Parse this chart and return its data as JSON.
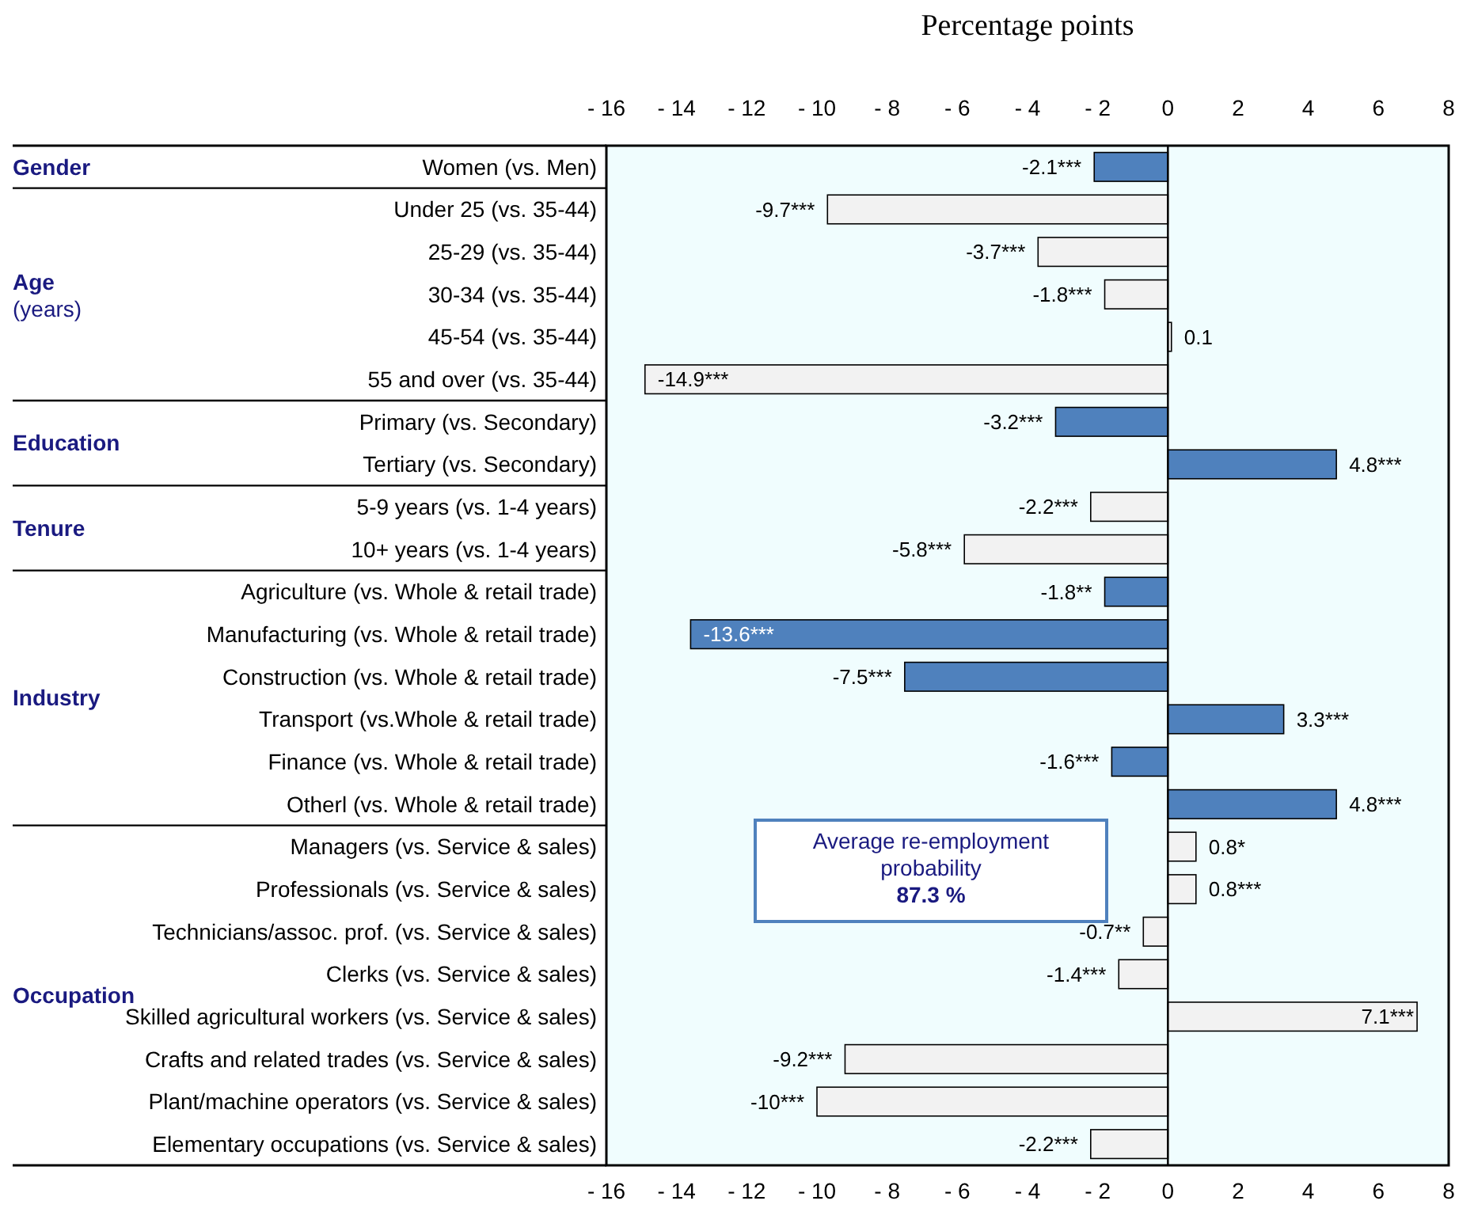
{
  "chart_data": {
    "type": "bar",
    "orientation": "horizontal",
    "title": "Percentage points",
    "categories": [
      "Women (vs. Men)",
      "Under 25 (vs. 35-44)",
      "25-29 (vs. 35-44)",
      "30-34 (vs. 35-44)",
      "45-54 (vs. 35-44)",
      "55 and over (vs. 35-44)",
      "Primary (vs. Secondary)",
      "Tertiary (vs. Secondary)",
      "5-9 years (vs. 1-4 years)",
      "10+ years (vs. 1-4 years)",
      "Agriculture (vs. Whole & retail trade)",
      "Manufacturing (vs. Whole & retail trade)",
      "Construction (vs. Whole & retail trade)",
      "Transport (vs.Whole & retail trade)",
      "Finance (vs. Whole & retail trade)",
      "Otherl (vs. Whole & retail trade)",
      "Managers (vs. Service & sales)",
      "Professionals (vs. Service & sales)",
      "Technicians/assoc. prof. (vs. Service & sales)",
      "Clerks (vs. Service & sales)",
      "Skilled agricultural workers (vs. Service & sales)",
      "Crafts and related trades (vs. Service & sales)",
      "Plant/machine operators (vs. Service & sales)",
      "Elementary occupations (vs. Service & sales)"
    ],
    "values": [
      -2.1,
      -9.7,
      -3.7,
      -1.8,
      0.1,
      -14.9,
      -3.2,
      4.8,
      -2.2,
      -5.8,
      -1.8,
      -13.6,
      -7.5,
      3.3,
      -1.6,
      4.8,
      0.8,
      0.8,
      -0.7,
      -1.4,
      7.1,
      -9.2,
      -10,
      -2.2
    ],
    "value_labels": [
      "-2.1***",
      "-9.7***",
      "-3.7***",
      "-1.8***",
      "0.1",
      "-14.9***",
      "-3.2***",
      "4.8***",
      "-2.2***",
      "-5.8***",
      "-1.8**",
      "-13.6***",
      "-7.5***",
      "3.3***",
      "-1.6***",
      "4.8***",
      "0.8*",
      "0.8***",
      "-0.7**",
      "-1.4***",
      "7.1***",
      "-9.2***",
      "-10***",
      "-2.2***"
    ],
    "colors": [
      "#4f81bd",
      "#f2f2f2",
      "#f2f2f2",
      "#f2f2f2",
      "#f2f2f2",
      "#f2f2f2",
      "#4f81bd",
      "#4f81bd",
      "#f2f2f2",
      "#f2f2f2",
      "#4f81bd",
      "#4f81bd",
      "#4f81bd",
      "#4f81bd",
      "#4f81bd",
      "#4f81bd",
      "#f2f2f2",
      "#f2f2f2",
      "#f2f2f2",
      "#f2f2f2",
      "#f2f2f2",
      "#f2f2f2",
      "#f2f2f2",
      "#f2f2f2"
    ],
    "xlim": [
      -16,
      8
    ],
    "xticks": [
      {
        "value": -16,
        "label": "- 16"
      },
      {
        "value": -14,
        "label": "- 14"
      },
      {
        "value": -12,
        "label": "- 12"
      },
      {
        "value": -10,
        "label": "- 10"
      },
      {
        "value": -8,
        "label": "- 8"
      },
      {
        "value": -6,
        "label": "- 6"
      },
      {
        "value": -4,
        "label": "- 4"
      },
      {
        "value": -2,
        "label": "- 2"
      },
      0,
      2,
      4,
      6,
      8
    ],
    "x2lim": [
      -16,
      8
    ],
    "x2ticks": [
      {
        "value": -16,
        "label": "- 16"
      },
      {
        "value": -14,
        "label": "- 14"
      },
      {
        "value": -12,
        "label": "- 12"
      },
      {
        "value": -10,
        "label": "- 10"
      },
      {
        "value": -8,
        "label": "- 8"
      },
      {
        "value": -6,
        "label": "- 6"
      },
      {
        "value": -4,
        "label": "- 4"
      },
      {
        "value": -2,
        "label": "- 2"
      },
      0,
      2,
      4,
      6,
      8
    ],
    "annotations": [
      "Gender",
      "Age\n(years)",
      "Education",
      "Tenure",
      "Industry",
      "Occupation",
      "Average re-employment probability",
      "87.3 %"
    ]
  }
}
